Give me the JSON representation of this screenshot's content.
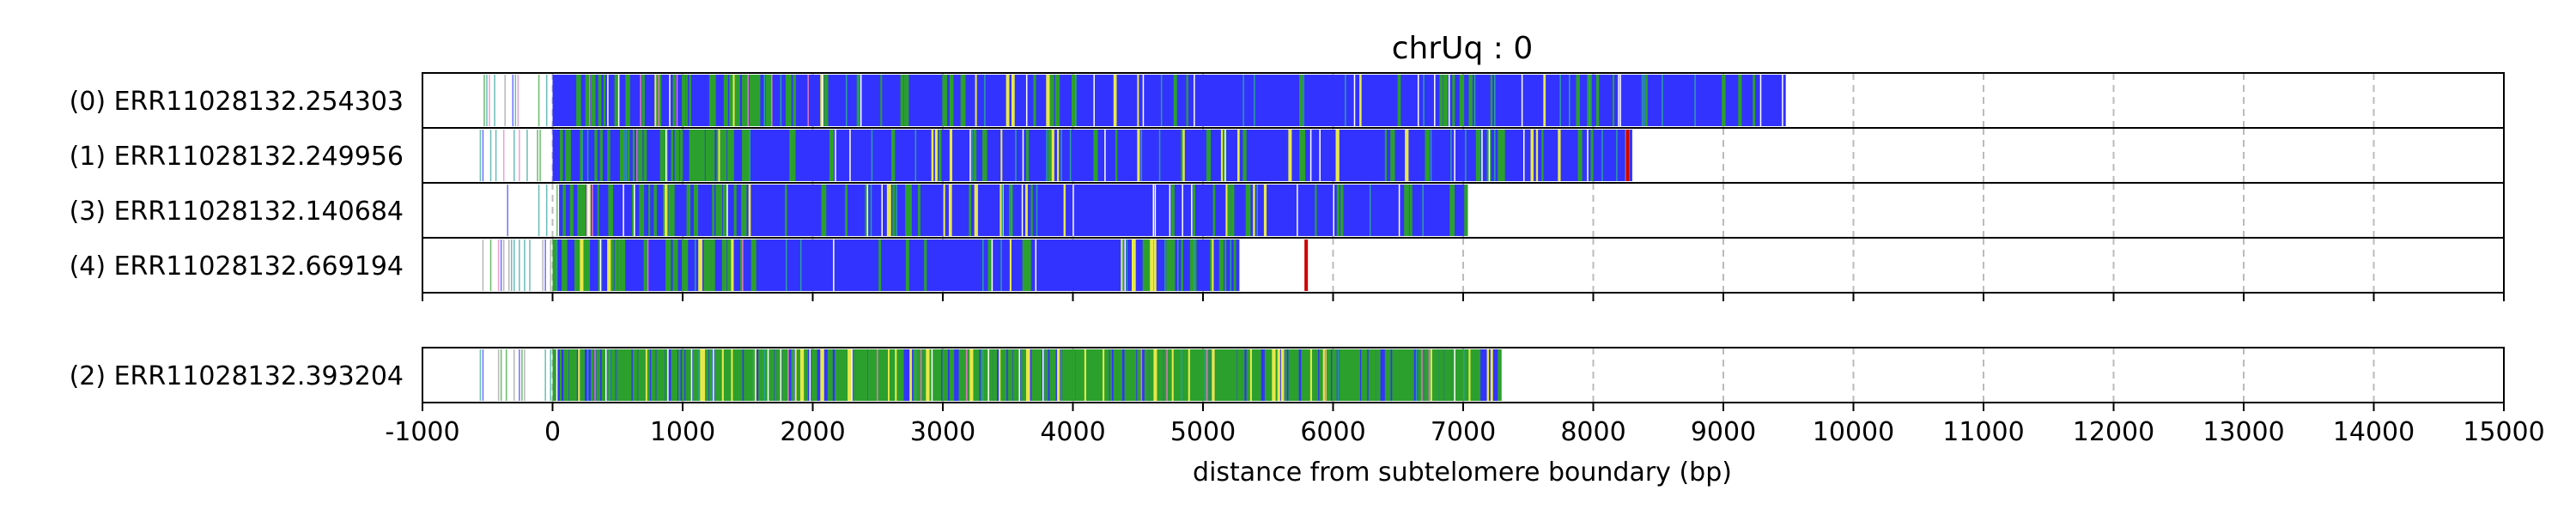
{
  "chart_data": {
    "type": "bar",
    "title": "chrUq : 0",
    "xlabel": "distance from subtelomere boundary (bp)",
    "ylabel": "",
    "xlim": [
      -1000,
      15000
    ],
    "xticks": [
      -1000,
      0,
      1000,
      2000,
      3000,
      4000,
      5000,
      6000,
      7000,
      8000,
      9000,
      10000,
      11000,
      12000,
      13000,
      14000,
      15000
    ],
    "grid": "vertical dashed",
    "colors": {
      "main": "#3333ff",
      "green": "#2ca02c",
      "yellow": "#e8e84a",
      "teal": "#2aa198",
      "pink": "#e377c2",
      "red": "#cc0000",
      "gray": "#999999"
    },
    "groups": [
      {
        "reads": [
          {
            "label": "(0) ERR11028132.254303",
            "start": -550,
            "end": 9480,
            "seed": 11,
            "scatter_start": -550,
            "dense_from": 0,
            "green_density": 0.25,
            "yellow_density": 0.02,
            "dense_end": 2000
          },
          {
            "label": "(1) ERR11028132.249956",
            "start": -720,
            "end": 8300,
            "seed": 23,
            "scatter_start": -720,
            "dense_from": 0,
            "green_density": 0.3,
            "yellow_density": 0.02,
            "dense_end": 1500,
            "red_at": [
              8250
            ]
          },
          {
            "label": "(3) ERR11028132.140684",
            "start": -550,
            "end": 7030,
            "seed": 37,
            "scatter_start": -550,
            "dense_from": 50,
            "green_density": 0.25,
            "yellow_density": 0.02,
            "dense_end": 1500
          },
          {
            "label": "(4) ERR11028132.669194",
            "start": -560,
            "end": 5280,
            "seed": 41,
            "scatter_start": -560,
            "dense_from": 0,
            "green_density": 0.3,
            "yellow_density": 0.03,
            "dense_end": 1500,
            "red_at": [
              5780
            ]
          }
        ]
      },
      {
        "reads": [
          {
            "label": "(2) ERR11028132.393204",
            "start": -560,
            "end": 7270,
            "seed": 53,
            "scatter_start": -560,
            "dense_from": 0,
            "green_density": 0.55,
            "yellow_density": 0.08,
            "dense_end": 7100,
            "green_blocks": [
              [
                4550,
                5250
              ],
              [
                6650,
                7050
              ]
            ]
          }
        ]
      }
    ]
  }
}
